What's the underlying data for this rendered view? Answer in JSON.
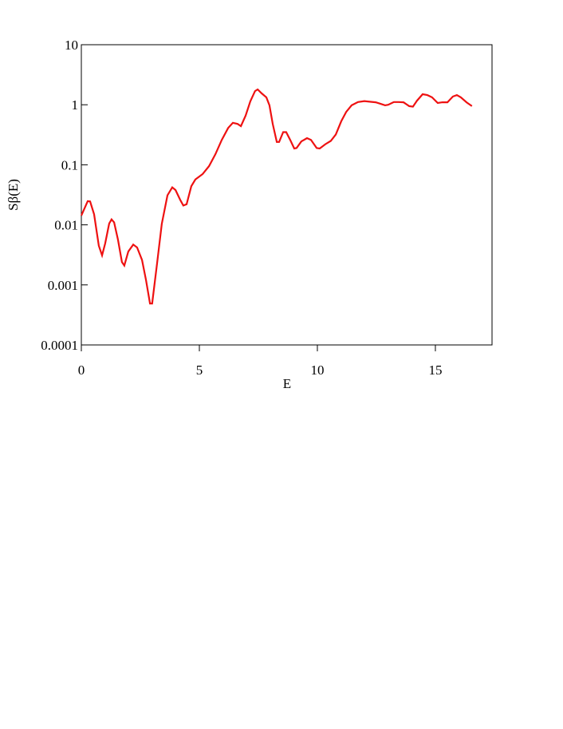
{
  "chart_data": {
    "type": "line",
    "xlabel": "E",
    "ylabel": "Sβ(E)",
    "x": [
      0,
      0.27,
      0.37,
      0.54,
      0.74,
      0.88,
      1.01,
      1.18,
      1.28,
      1.39,
      1.55,
      1.72,
      1.82,
      1.99,
      2.2,
      2.36,
      2.57,
      2.74,
      2.91,
      3.0,
      3.21,
      3.41,
      3.65,
      3.85,
      3.99,
      4.19,
      4.32,
      4.46,
      4.66,
      4.83,
      5.14,
      5.41,
      5.68,
      5.95,
      6.22,
      6.42,
      6.62,
      6.76,
      6.96,
      7.16,
      7.36,
      7.47,
      7.64,
      7.84,
      7.97,
      8.11,
      8.28,
      8.38,
      8.55,
      8.68,
      8.85,
      9.02,
      9.12,
      9.32,
      9.56,
      9.73,
      9.97,
      10.1,
      10.34,
      10.57,
      10.78,
      11.01,
      11.22,
      11.45,
      11.72,
      11.99,
      12.26,
      12.47,
      12.67,
      12.87,
      13.0,
      13.24,
      13.45,
      13.65,
      13.89,
      14.05,
      14.22,
      14.46,
      14.66,
      14.86,
      15.1,
      15.3,
      15.51,
      15.74,
      15.91,
      16.08,
      16.32,
      16.55
    ],
    "series": [
      {
        "color": "#ee1111",
        "values": [
          0.0143,
          0.0248,
          0.0245,
          0.015,
          0.0045,
          0.0031,
          0.0049,
          0.0105,
          0.0123,
          0.011,
          0.0057,
          0.0024,
          0.0021,
          0.0036,
          0.0047,
          0.0042,
          0.0026,
          0.0012,
          0.00049,
          0.00049,
          0.0023,
          0.0104,
          0.031,
          0.042,
          0.038,
          0.026,
          0.021,
          0.022,
          0.044,
          0.057,
          0.07,
          0.095,
          0.15,
          0.26,
          0.41,
          0.5,
          0.48,
          0.44,
          0.66,
          1.14,
          1.69,
          1.8,
          1.55,
          1.33,
          0.98,
          0.48,
          0.24,
          0.24,
          0.35,
          0.35,
          0.26,
          0.187,
          0.19,
          0.245,
          0.278,
          0.26,
          0.19,
          0.187,
          0.22,
          0.25,
          0.32,
          0.53,
          0.76,
          0.98,
          1.11,
          1.15,
          1.12,
          1.1,
          1.04,
          0.98,
          1.0,
          1.11,
          1.11,
          1.1,
          0.95,
          0.93,
          1.17,
          1.5,
          1.45,
          1.33,
          1.07,
          1.1,
          1.1,
          1.37,
          1.45,
          1.33,
          1.1,
          0.95
        ]
      }
    ],
    "xlim": [
      0,
      17.4
    ],
    "xticks": [
      0,
      5,
      10,
      15
    ],
    "ylim": [
      0.0001,
      10
    ],
    "yticks": [
      0.0001,
      0.001,
      0.01,
      0.1,
      1,
      10
    ],
    "ylog": true
  }
}
